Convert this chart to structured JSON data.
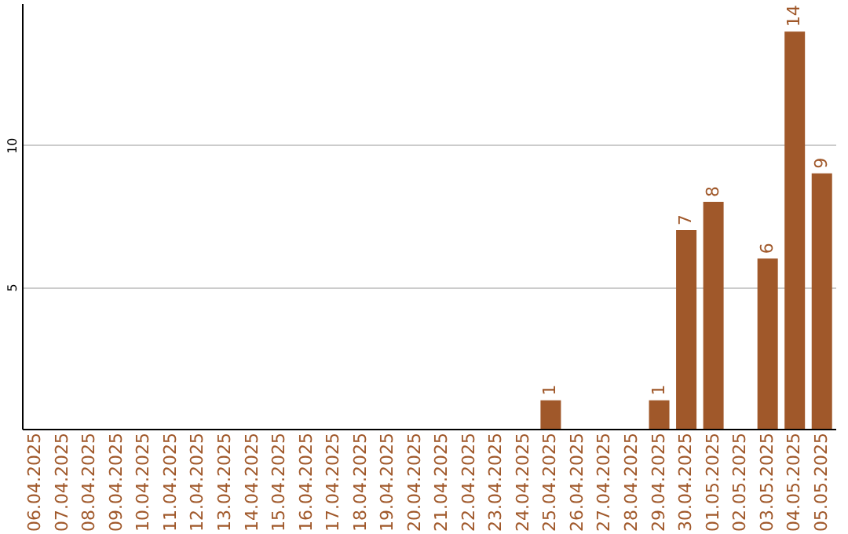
{
  "chart_data": {
    "type": "bar",
    "categories": [
      "06.04.2025",
      "07.04.2025",
      "08.04.2025",
      "09.04.2025",
      "10.04.2025",
      "11.04.2025",
      "12.04.2025",
      "13.04.2025",
      "14.04.2025",
      "15.04.2025",
      "16.04.2025",
      "17.04.2025",
      "18.04.2025",
      "19.04.2025",
      "20.04.2025",
      "21.04.2025",
      "22.04.2025",
      "23.04.2025",
      "24.04.2025",
      "25.04.2025",
      "26.04.2025",
      "27.04.2025",
      "28.04.2025",
      "29.04.2025",
      "30.04.2025",
      "01.05.2025",
      "02.05.2025",
      "03.05.2025",
      "04.05.2025",
      "05.05.2025"
    ],
    "values": [
      0,
      0,
      0,
      0,
      0,
      0,
      0,
      0,
      0,
      0,
      0,
      0,
      0,
      0,
      0,
      0,
      0,
      0,
      0,
      1,
      0,
      0,
      0,
      1,
      7,
      8,
      0,
      6,
      14,
      9
    ],
    "value_labels": [
      null,
      null,
      null,
      null,
      null,
      null,
      null,
      null,
      null,
      null,
      null,
      null,
      null,
      null,
      null,
      null,
      null,
      null,
      null,
      "1",
      null,
      null,
      null,
      "1",
      "7",
      "8",
      null,
      "6",
      "14",
      "9"
    ],
    "color": "#a0582a",
    "ylim": [
      0,
      15
    ],
    "yticks": [
      5,
      10
    ],
    "grid": "y"
  }
}
